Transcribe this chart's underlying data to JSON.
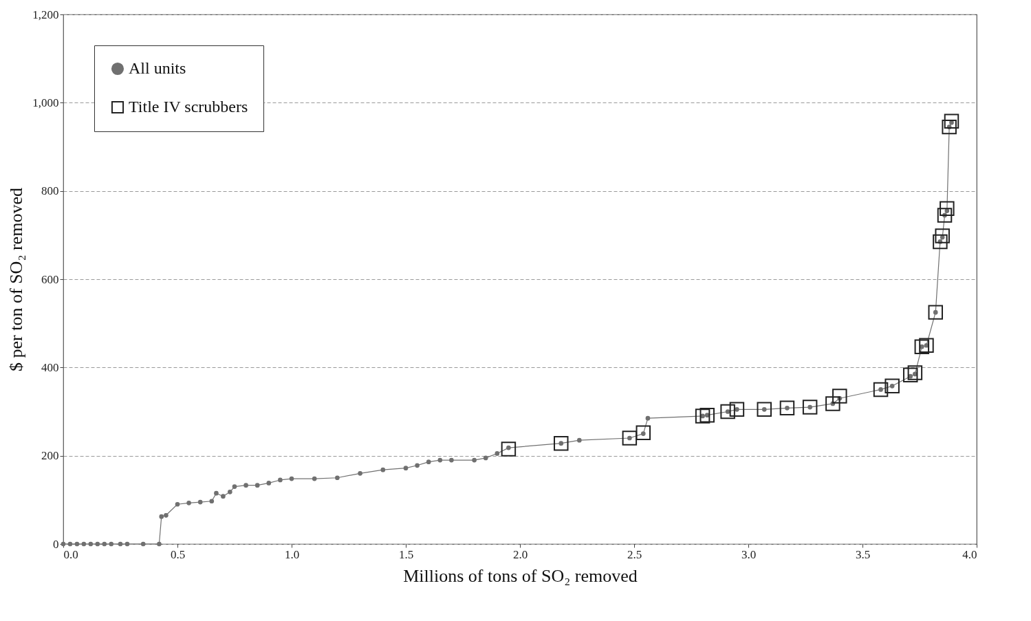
{
  "chart_data": {
    "type": "line",
    "xlabel": "Millions of tons of SO₂ removed",
    "ylabel": "$ per ton of SO₂ removed",
    "xlim": [
      0,
      4
    ],
    "xticks": [
      {
        "value": 0,
        "label": "0.0"
      },
      {
        "value": 0.5,
        "label": "0.5"
      },
      {
        "value": 1,
        "label": "1.0"
      },
      {
        "value": 1.5,
        "label": "1.5"
      },
      {
        "value": 2,
        "label": "2.0"
      },
      {
        "value": 2.5,
        "label": "2.5"
      },
      {
        "value": 3,
        "label": "3.0"
      },
      {
        "value": 3.5,
        "label": "3.5"
      },
      {
        "value": 4,
        "label": "4.0"
      }
    ],
    "ylim": [
      0,
      1200
    ],
    "yticks": [
      0,
      200,
      400,
      600,
      800,
      {
        "value": 1000,
        "label": "1,000"
      },
      {
        "value": 1200,
        "label": "1,200"
      }
    ],
    "grid": "y",
    "legend": "top left",
    "series": [
      {
        "name": "All units",
        "marker": "circle",
        "color": "#707070",
        "x": [
          0,
          0.03,
          0.06,
          0.09,
          0.12,
          0.15,
          0.18,
          0.21,
          0.25,
          0.28,
          0.35,
          0.42,
          0.43,
          0.45,
          0.5,
          0.55,
          0.6,
          0.65,
          0.67,
          0.7,
          0.73,
          0.75,
          0.8,
          0.85,
          0.9,
          0.95,
          1.0,
          1.1,
          1.2,
          1.3,
          1.4,
          1.5,
          1.55,
          1.6,
          1.65,
          1.7,
          1.8,
          1.85,
          1.9,
          1.95,
          2.18,
          2.26,
          2.48,
          2.54,
          2.56,
          2.8,
          2.82,
          2.91,
          2.95,
          3.07,
          3.17,
          3.27,
          3.37,
          3.4,
          3.58,
          3.63,
          3.71,
          3.73,
          3.76,
          3.78,
          3.82,
          3.84,
          3.85,
          3.86,
          3.87,
          3.88,
          3.89
        ],
        "values": [
          0,
          0,
          0,
          0,
          0,
          0,
          0,
          0,
          0,
          0,
          0,
          0,
          62,
          65,
          90,
          93,
          95,
          97,
          115,
          108,
          118,
          130,
          133,
          133,
          138,
          145,
          148,
          148,
          150,
          160,
          168,
          172,
          178,
          186,
          190,
          190,
          190,
          195,
          205,
          218,
          228,
          235,
          240,
          250,
          285,
          290,
          292,
          300,
          305,
          305,
          308,
          310,
          318,
          330,
          350,
          358,
          380,
          385,
          447,
          450,
          525,
          685,
          695,
          745,
          755,
          945,
          955
        ]
      },
      {
        "name": "Title IV scrubbers",
        "type": "scatter",
        "marker": "square",
        "color": "#222222",
        "x": [
          1.95,
          2.18,
          2.48,
          2.54,
          2.8,
          2.82,
          2.91,
          2.95,
          3.07,
          3.17,
          3.27,
          3.37,
          3.4,
          3.58,
          3.63,
          3.71,
          3.73,
          3.76,
          3.78,
          3.82,
          3.84,
          3.85,
          3.86,
          3.87,
          3.88,
          3.89
        ],
        "values": [
          215,
          228,
          240,
          252,
          290,
          292,
          300,
          305,
          305,
          308,
          310,
          318,
          335,
          350,
          358,
          383,
          388,
          447,
          450,
          525,
          685,
          698,
          745,
          760,
          945,
          958
        ]
      }
    ]
  }
}
